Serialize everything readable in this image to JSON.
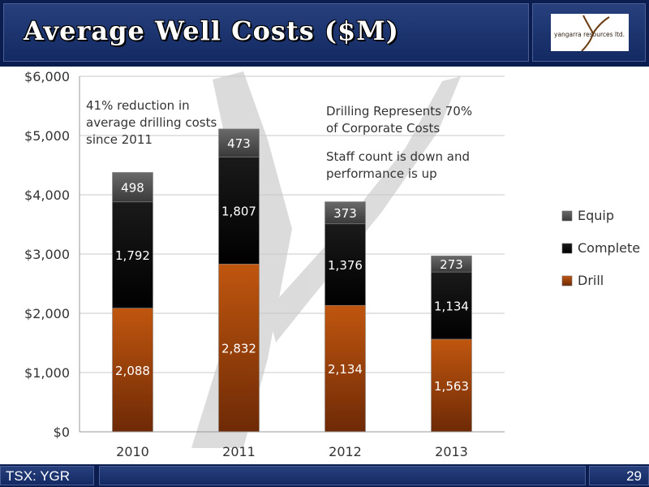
{
  "slide": {
    "title": "Average Well Costs ($M)",
    "logo_text": "yangarra resources ltd.",
    "footer_ticker": "TSX: YGR",
    "page_number": "29"
  },
  "annotations": {
    "reduction": [
      "41% reduction in",
      "average drilling costs",
      "since 2011"
    ],
    "corporate": [
      "Drilling Represents 70%",
      "of Corporate Costs"
    ],
    "staff": [
      "Staff count is down and",
      "performance is up"
    ]
  },
  "colors": {
    "drill": "#a5410d",
    "complete": "#0a0a0a",
    "equip": "#4d4d4d",
    "header": "#0b1d4e"
  },
  "chart_data": {
    "type": "bar",
    "stacked": true,
    "categories": [
      "2010",
      "2011",
      "2012",
      "2013"
    ],
    "series": [
      {
        "name": "Drill",
        "values": [
          2088,
          2832,
          2134,
          1563
        ]
      },
      {
        "name": "Complete",
        "values": [
          1792,
          1807,
          1376,
          1134
        ]
      },
      {
        "name": "Equip",
        "values": [
          498,
          473,
          373,
          273
        ]
      }
    ],
    "ylim": [
      0,
      6000
    ],
    "yticks": [
      0,
      1000,
      2000,
      3000,
      4000,
      5000,
      6000
    ],
    "ytick_labels": [
      "$0",
      "$1,000",
      "$2,000",
      "$3,000",
      "$4,000",
      "$5,000",
      "$6,000"
    ],
    "data_labels": [
      [
        "2,088",
        "2,832",
        "2,134",
        "1,563"
      ],
      [
        "1,792",
        "1,807",
        "1,376",
        "1,134"
      ],
      [
        "498",
        "473",
        "373",
        "273"
      ]
    ],
    "legend": [
      "Equip",
      "Complete",
      "Drill"
    ],
    "legend_position": "right",
    "grid": true
  }
}
